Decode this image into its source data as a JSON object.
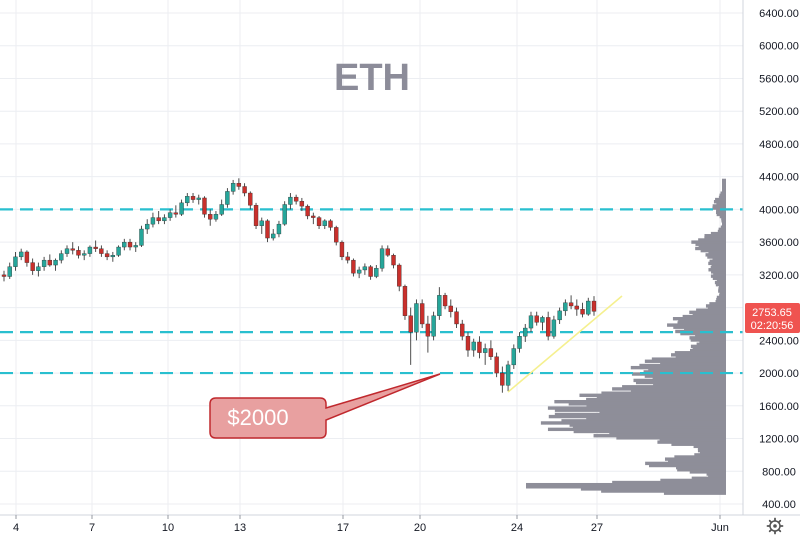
{
  "chart_data": {
    "type": "candlestick",
    "title": "ETH",
    "annotation": "$2000",
    "x_ticks": [
      "4",
      "7",
      "10",
      "13",
      "17",
      "20",
      "24",
      "27",
      "Jun"
    ],
    "y_ticks": [
      "6400.00",
      "6000.00",
      "5600.00",
      "5200.00",
      "4800.00",
      "4400.00",
      "4000.00",
      "3600.00",
      "3200.00",
      "2800.00",
      "2400.00",
      "2000.00",
      "1600.00",
      "1200.00",
      "800.00",
      "400.00"
    ],
    "y_range": [
      400,
      6400
    ],
    "horizontal_levels": [
      4000,
      2500,
      2000
    ],
    "last_price": "2753.65",
    "countdown": "02:20:56",
    "colors": {
      "up": "#26a69a",
      "down": "#c9302c",
      "level": "#29bfcf",
      "trend": "#f5f08f",
      "volume_profile": "#8e8e99",
      "callout_fill": "#e8a0a0",
      "callout_border": "#c0282d",
      "title": "#8c8c99",
      "price_tag": "#ef5350"
    },
    "candles": [
      [
        3200,
        3250,
        3120,
        3180
      ],
      [
        3180,
        3350,
        3150,
        3300
      ],
      [
        3300,
        3480,
        3250,
        3420
      ],
      [
        3420,
        3520,
        3380,
        3480
      ],
      [
        3480,
        3500,
        3300,
        3350
      ],
      [
        3350,
        3400,
        3200,
        3250
      ],
      [
        3250,
        3350,
        3180,
        3300
      ],
      [
        3300,
        3420,
        3250,
        3380
      ],
      [
        3380,
        3450,
        3300,
        3320
      ],
      [
        3320,
        3400,
        3250,
        3380
      ],
      [
        3380,
        3500,
        3340,
        3460
      ],
      [
        3460,
        3560,
        3420,
        3520
      ],
      [
        3520,
        3600,
        3450,
        3500
      ],
      [
        3500,
        3550,
        3400,
        3440
      ],
      [
        3440,
        3500,
        3380,
        3460
      ],
      [
        3460,
        3560,
        3420,
        3540
      ],
      [
        3540,
        3620,
        3480,
        3520
      ],
      [
        3520,
        3560,
        3420,
        3460
      ],
      [
        3460,
        3500,
        3380,
        3420
      ],
      [
        3420,
        3480,
        3360,
        3440
      ],
      [
        3440,
        3560,
        3420,
        3540
      ],
      [
        3540,
        3640,
        3500,
        3600
      ],
      [
        3600,
        3640,
        3500,
        3540
      ],
      [
        3540,
        3600,
        3480,
        3560
      ],
      [
        3560,
        3800,
        3540,
        3760
      ],
      [
        3760,
        3880,
        3700,
        3820
      ],
      [
        3820,
        3960,
        3780,
        3900
      ],
      [
        3900,
        3980,
        3820,
        3860
      ],
      [
        3860,
        3940,
        3820,
        3900
      ],
      [
        3900,
        4000,
        3860,
        3960
      ],
      [
        3960,
        4050,
        3900,
        3940
      ],
      [
        3940,
        4120,
        3920,
        4080
      ],
      [
        4080,
        4200,
        4040,
        4160
      ],
      [
        4160,
        4200,
        4080,
        4120
      ],
      [
        4120,
        4180,
        4060,
        4140
      ],
      [
        4140,
        4160,
        3900,
        3940
      ],
      [
        3940,
        4000,
        3800,
        3880
      ],
      [
        3880,
        3980,
        3850,
        3940
      ],
      [
        3940,
        4120,
        3920,
        4060
      ],
      [
        4060,
        4260,
        4020,
        4220
      ],
      [
        4220,
        4360,
        4180,
        4320
      ],
      [
        4320,
        4380,
        4240,
        4280
      ],
      [
        4280,
        4320,
        4160,
        4200
      ],
      [
        4200,
        4220,
        4000,
        4050
      ],
      [
        4050,
        4080,
        3760,
        3800
      ],
      [
        3800,
        3900,
        3700,
        3860
      ],
      [
        3860,
        3880,
        3600,
        3650
      ],
      [
        3650,
        3760,
        3620,
        3700
      ],
      [
        3700,
        3860,
        3660,
        3820
      ],
      [
        3820,
        4100,
        3800,
        4060
      ],
      [
        4060,
        4200,
        4000,
        4150
      ],
      [
        4150,
        4180,
        4060,
        4100
      ],
      [
        4100,
        4140,
        3980,
        4040
      ],
      [
        4040,
        4060,
        3880,
        3920
      ],
      [
        3920,
        3960,
        3820,
        3900
      ],
      [
        3900,
        3920,
        3760,
        3800
      ],
      [
        3800,
        3880,
        3760,
        3860
      ],
      [
        3860,
        3880,
        3740,
        3780
      ],
      [
        3780,
        3800,
        3560,
        3600
      ],
      [
        3600,
        3620,
        3380,
        3420
      ],
      [
        3420,
        3480,
        3340,
        3380
      ],
      [
        3380,
        3400,
        3180,
        3220
      ],
      [
        3220,
        3300,
        3160,
        3260
      ],
      [
        3260,
        3340,
        3200,
        3300
      ],
      [
        3300,
        3320,
        3140,
        3180
      ],
      [
        3180,
        3320,
        3160,
        3280
      ],
      [
        3280,
        3560,
        3240,
        3520
      ],
      [
        3520,
        3560,
        3420,
        3440
      ],
      [
        3440,
        3460,
        3280,
        3320
      ],
      [
        3320,
        3340,
        3000,
        3060
      ],
      [
        3060,
        3080,
        2650,
        2700
      ],
      [
        2700,
        2800,
        2100,
        2500
      ],
      [
        2500,
        2900,
        2400,
        2850
      ],
      [
        2850,
        2900,
        2550,
        2600
      ],
      [
        2600,
        2700,
        2250,
        2450
      ],
      [
        2450,
        2750,
        2400,
        2700
      ],
      [
        2700,
        3050,
        2650,
        2950
      ],
      [
        2950,
        2980,
        2780,
        2820
      ],
      [
        2820,
        2900,
        2680,
        2750
      ],
      [
        2750,
        2800,
        2550,
        2600
      ],
      [
        2600,
        2650,
        2400,
        2450
      ],
      [
        2450,
        2500,
        2200,
        2280
      ],
      [
        2280,
        2420,
        2200,
        2380
      ],
      [
        2380,
        2450,
        2180,
        2250
      ],
      [
        2250,
        2360,
        2100,
        2300
      ],
      [
        2300,
        2400,
        2160,
        2200
      ],
      [
        2200,
        2250,
        1950,
        2000
      ],
      [
        2000,
        2080,
        1760,
        1850
      ],
      [
        1850,
        2150,
        1780,
        2100
      ],
      [
        2100,
        2350,
        2050,
        2300
      ],
      [
        2300,
        2500,
        2250,
        2450
      ],
      [
        2450,
        2600,
        2380,
        2550
      ],
      [
        2550,
        2750,
        2500,
        2700
      ],
      [
        2700,
        2750,
        2580,
        2620
      ],
      [
        2620,
        2700,
        2520,
        2680
      ],
      [
        2680,
        2750,
        2400,
        2450
      ],
      [
        2450,
        2700,
        2420,
        2650
      ],
      [
        2650,
        2800,
        2600,
        2760
      ],
      [
        2760,
        2900,
        2700,
        2860
      ],
      [
        2860,
        2950,
        2780,
        2820
      ],
      [
        2820,
        2900,
        2700,
        2780
      ],
      [
        2780,
        2860,
        2680,
        2720
      ],
      [
        2720,
        2920,
        2700,
        2880
      ],
      [
        2880,
        2940,
        2700,
        2754
      ]
    ]
  }
}
